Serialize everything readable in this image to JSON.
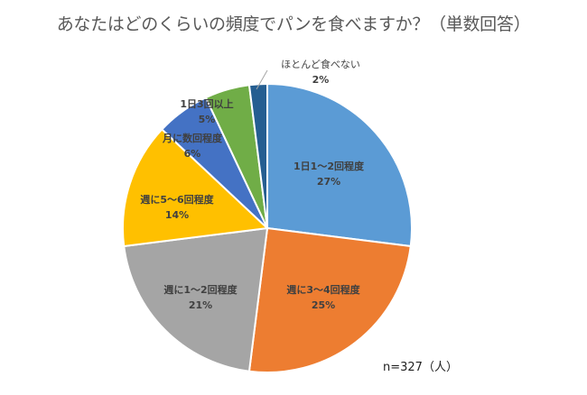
{
  "title": "あなたはどのくらいの頻度でパンを食べますか？（単数回答）",
  "note": "n=327（人）",
  "chart_data": {
    "type": "pie",
    "title": "あなたはどのくらいの頻度でパンを食べますか？（単数回答）",
    "categories": [
      "1日1〜2回程度",
      "週に3〜4回程度",
      "週に1〜2回程度",
      "週に5〜6回程度",
      "月に数回程度",
      "1日3回以上",
      "ほとんど食べない"
    ],
    "values": [
      27,
      25,
      21,
      14,
      6,
      5,
      2
    ],
    "unit": "%",
    "colors": [
      "#5B9BD5",
      "#ED7D31",
      "#A5A5A5",
      "#FFC000",
      "#4472C4",
      "#70AD47",
      "#255E91"
    ],
    "sample_size": "n=327（人）",
    "legend": "none (data labels on slices)"
  },
  "labels": [
    {
      "cat": "1日1〜2回程度",
      "pct": "27%"
    },
    {
      "cat": "週に3〜4回程度",
      "pct": "25%"
    },
    {
      "cat": "週に1〜2回程度",
      "pct": "21%"
    },
    {
      "cat": "週に5〜6回程度",
      "pct": "14%"
    },
    {
      "cat": "月に数回程度",
      "pct": "6%"
    },
    {
      "cat": "1日3回以上",
      "pct": "5%"
    },
    {
      "cat": "ほとんど食べない",
      "pct": "2%"
    }
  ]
}
